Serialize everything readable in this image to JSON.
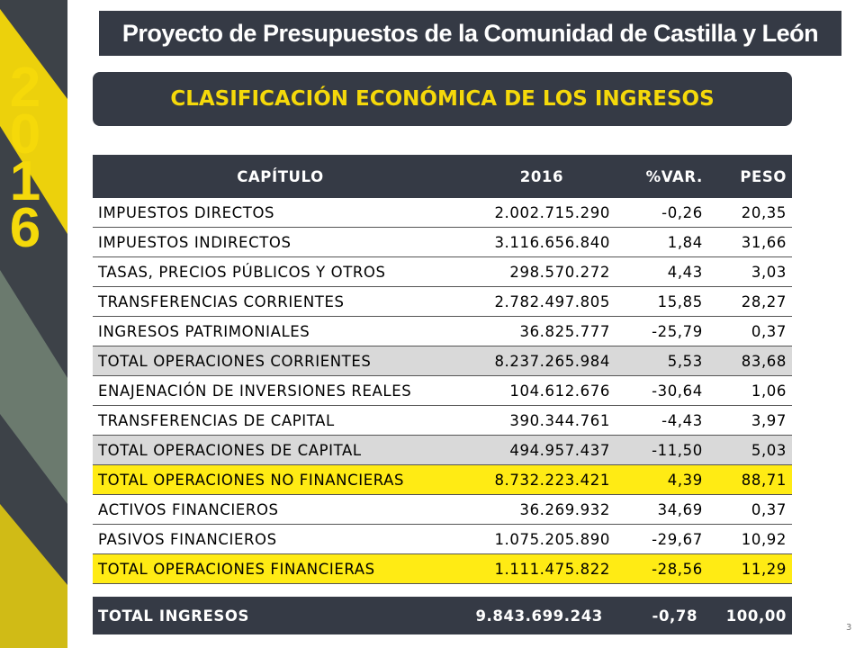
{
  "header": {
    "title": "Proyecto de Presupuestos de la Comunidad de Castilla y León"
  },
  "sidebar": {
    "year": "2016"
  },
  "section": {
    "title": "CLASIFICACIÓN ECONÓMICA DE LOS INGRESOS"
  },
  "table": {
    "columns": [
      "CAPÍTULO",
      "2016",
      "%VAR.",
      "PESO"
    ],
    "rows": [
      [
        "IMPUESTOS DIRECTOS",
        "2.002.715.290",
        "-0,26",
        "20,35"
      ],
      [
        "IMPUESTOS INDIRECTOS",
        "3.116.656.840",
        "1,84",
        "31,66"
      ],
      [
        "TASAS, PRECIOS PÚBLICOS  Y OTROS",
        "298.570.272",
        "4,43",
        "3,03"
      ],
      [
        "TRANSFERENCIAS CORRIENTES",
        "2.782.497.805",
        "15,85",
        "28,27"
      ],
      [
        "INGRESOS PATRIMONIALES",
        "36.825.777",
        "-25,79",
        "0,37"
      ],
      [
        "TOTAL OPERACIONES CORRIENTES",
        "8.237.265.984",
        "5,53",
        "83,68"
      ],
      [
        "ENAJENACIÓN DE INVERSIONES REALES",
        "104.612.676",
        "-30,64",
        "1,06"
      ],
      [
        "TRANSFERENCIAS DE CAPITAL",
        "390.344.761",
        "-4,43",
        "3,97"
      ],
      [
        "TOTAL OPERACIONES DE CAPITAL",
        "494.957.437",
        "-11,50",
        "5,03"
      ],
      [
        "TOTAL OPERACIONES NO FINANCIERAS",
        "8.732.223.421",
        "4,39",
        "88,71"
      ],
      [
        "ACTIVOS FINANCIEROS",
        "36.269.932",
        "34,69",
        "0,37"
      ],
      [
        "PASIVOS FINANCIEROS",
        "1.075.205.890",
        "-29,67",
        "10,92"
      ],
      [
        "TOTAL OPERACIONES FINANCIERAS",
        "1.111.475.822",
        "-28,56",
        "11,29"
      ]
    ],
    "total": [
      "TOTAL INGRESOS",
      "9.843.699.243",
      "-0,78",
      "100,00"
    ]
  },
  "footer": {
    "page": "3"
  }
}
